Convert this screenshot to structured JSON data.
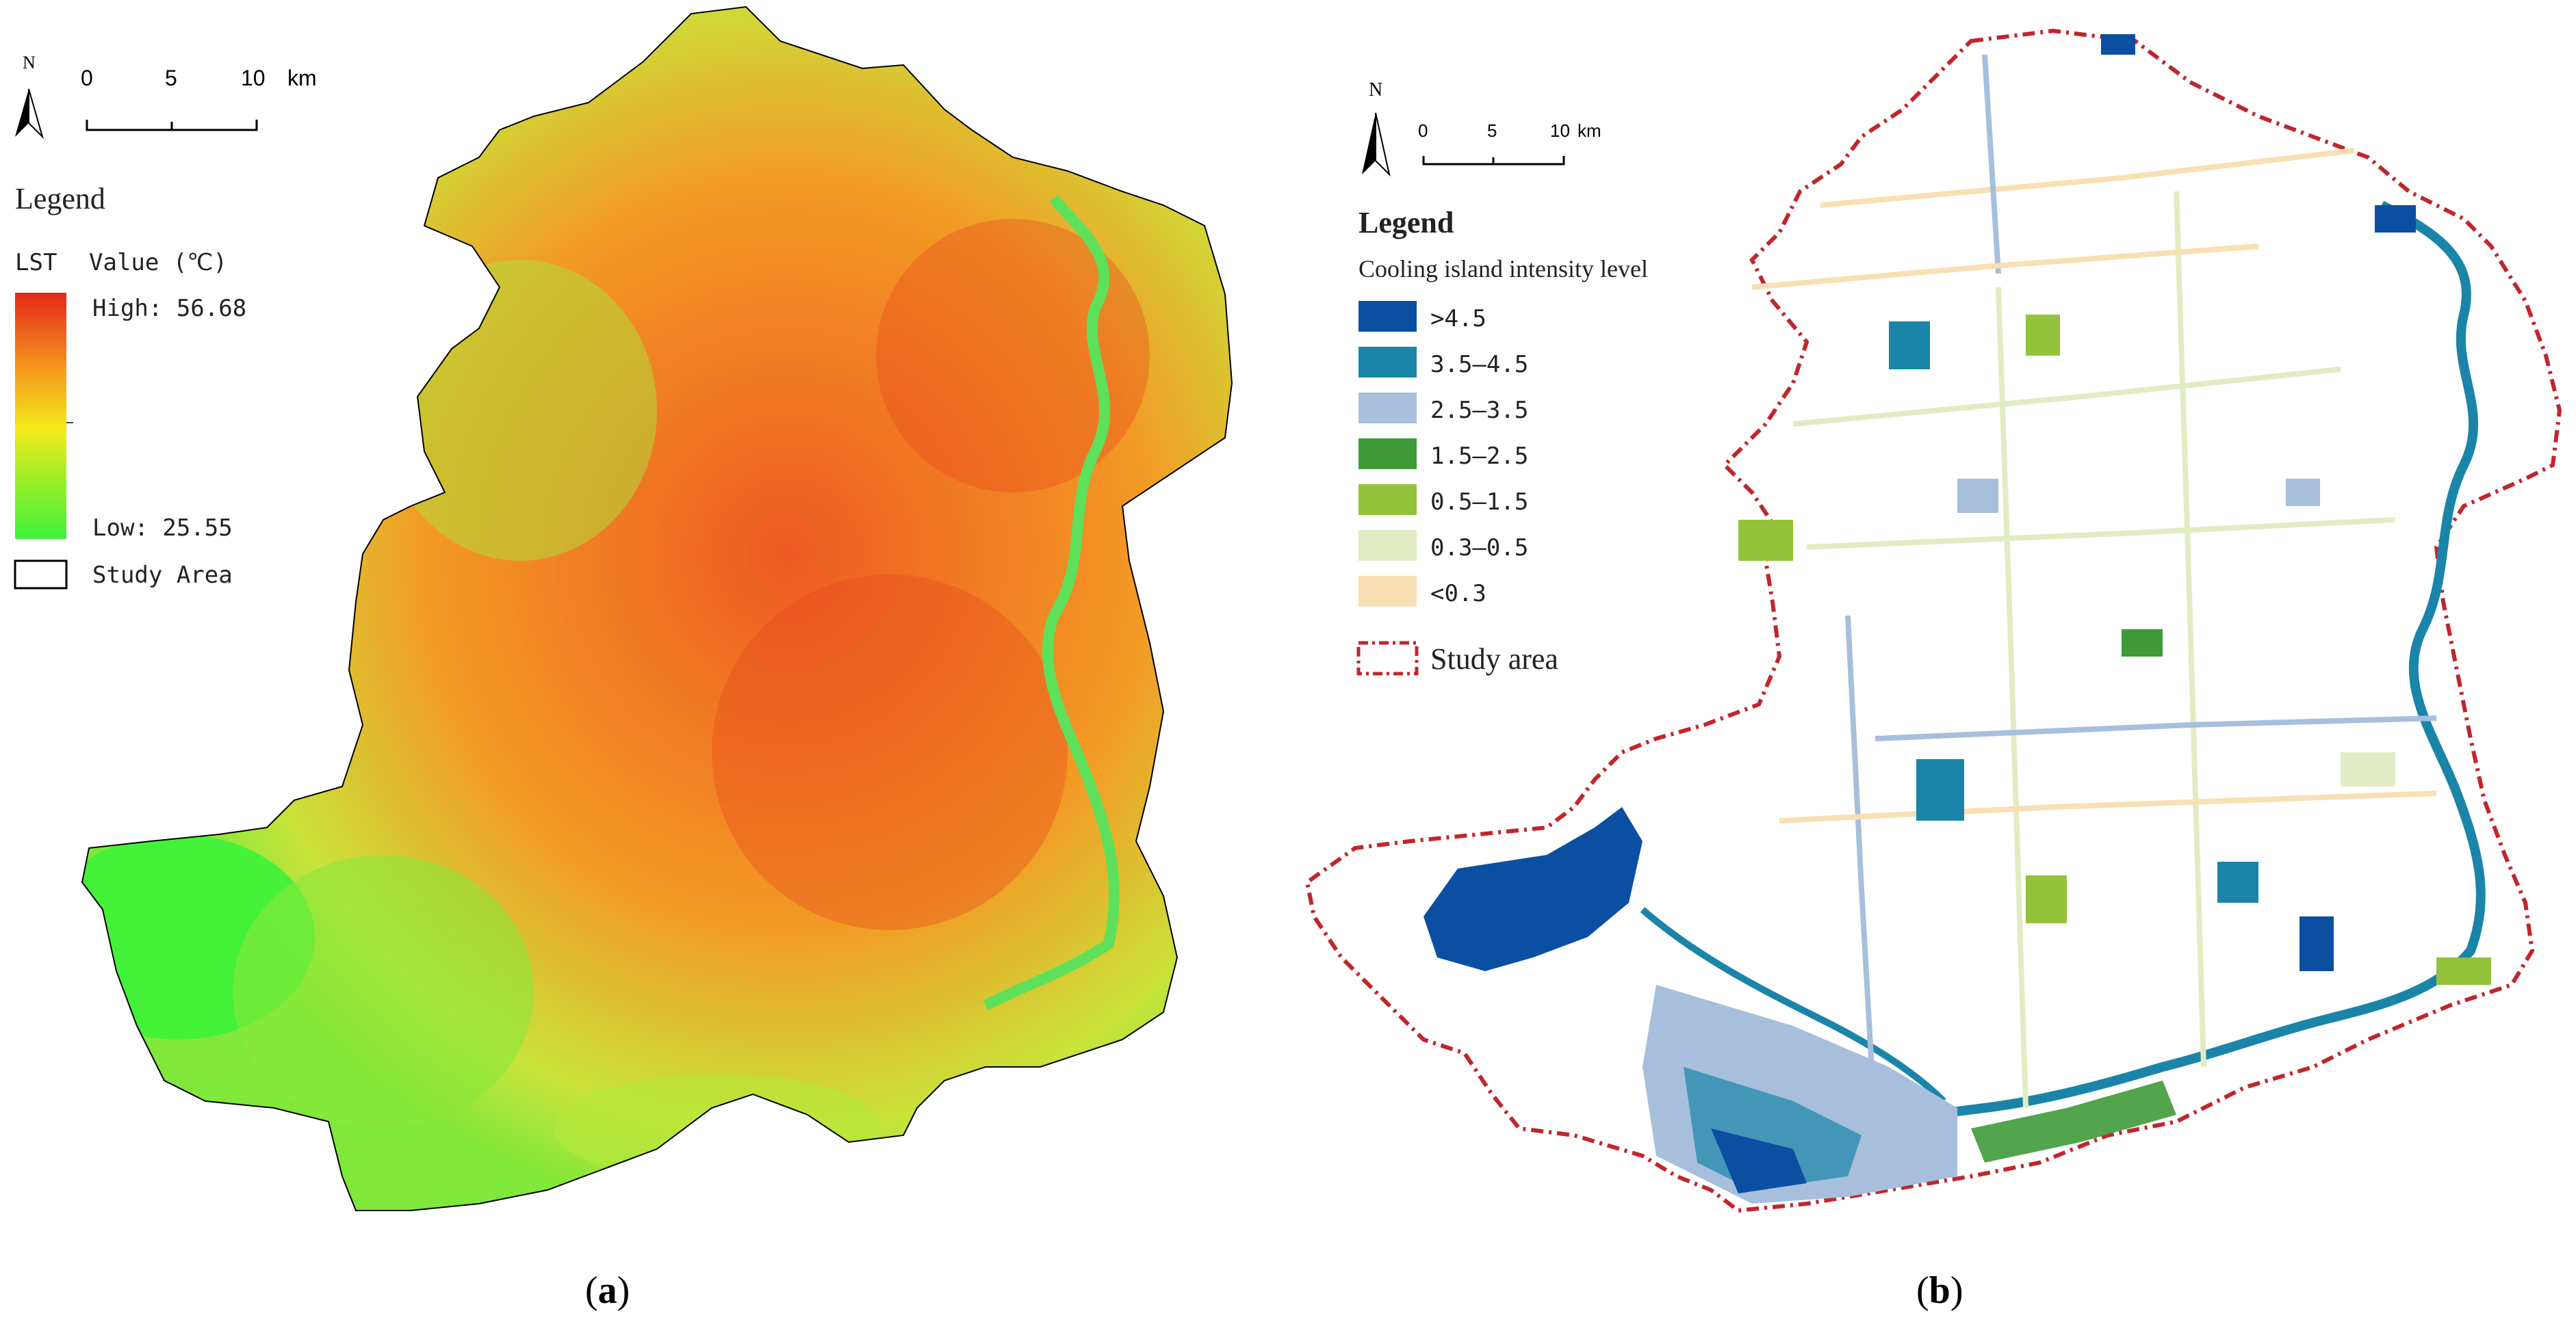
{
  "panel_a": {
    "north_label": "N",
    "scale_ticks": [
      "0",
      "5",
      "10"
    ],
    "scale_unit": "km",
    "legend_title": "Legend",
    "lst_label": "LST",
    "value_label": "Value (℃)",
    "high_label": "High: 56.68",
    "low_label": "Low: 25.55",
    "study_area_label": "Study Area",
    "caption": "a",
    "colors": {
      "high": "#e8401c",
      "mid": "#f2ea1a",
      "low": "#3df23a"
    }
  },
  "panel_b": {
    "north_label": "N",
    "scale_ticks": [
      "0",
      "5",
      "10"
    ],
    "scale_unit": "km",
    "legend_title": "Legend",
    "legend_subtitle": "Cooling island intensity level",
    "classes": [
      {
        "label": ">4.5",
        "color": "#0b4fa3"
      },
      {
        "label": "3.5–4.5",
        "color": "#1a85a8"
      },
      {
        "label": "2.5–3.5",
        "color": "#a7bfdc"
      },
      {
        "label": "1.5–2.5",
        "color": "#3f9a3a"
      },
      {
        "label": "0.5–1.5",
        "color": "#93c23b"
      },
      {
        "label": "0.3–0.5",
        "color": "#e2ecc4"
      },
      {
        "label": "<0.3",
        "color": "#f8dfb4"
      }
    ],
    "study_area_label": "Study area",
    "boundary_color": "#c0262c",
    "caption": "b"
  }
}
